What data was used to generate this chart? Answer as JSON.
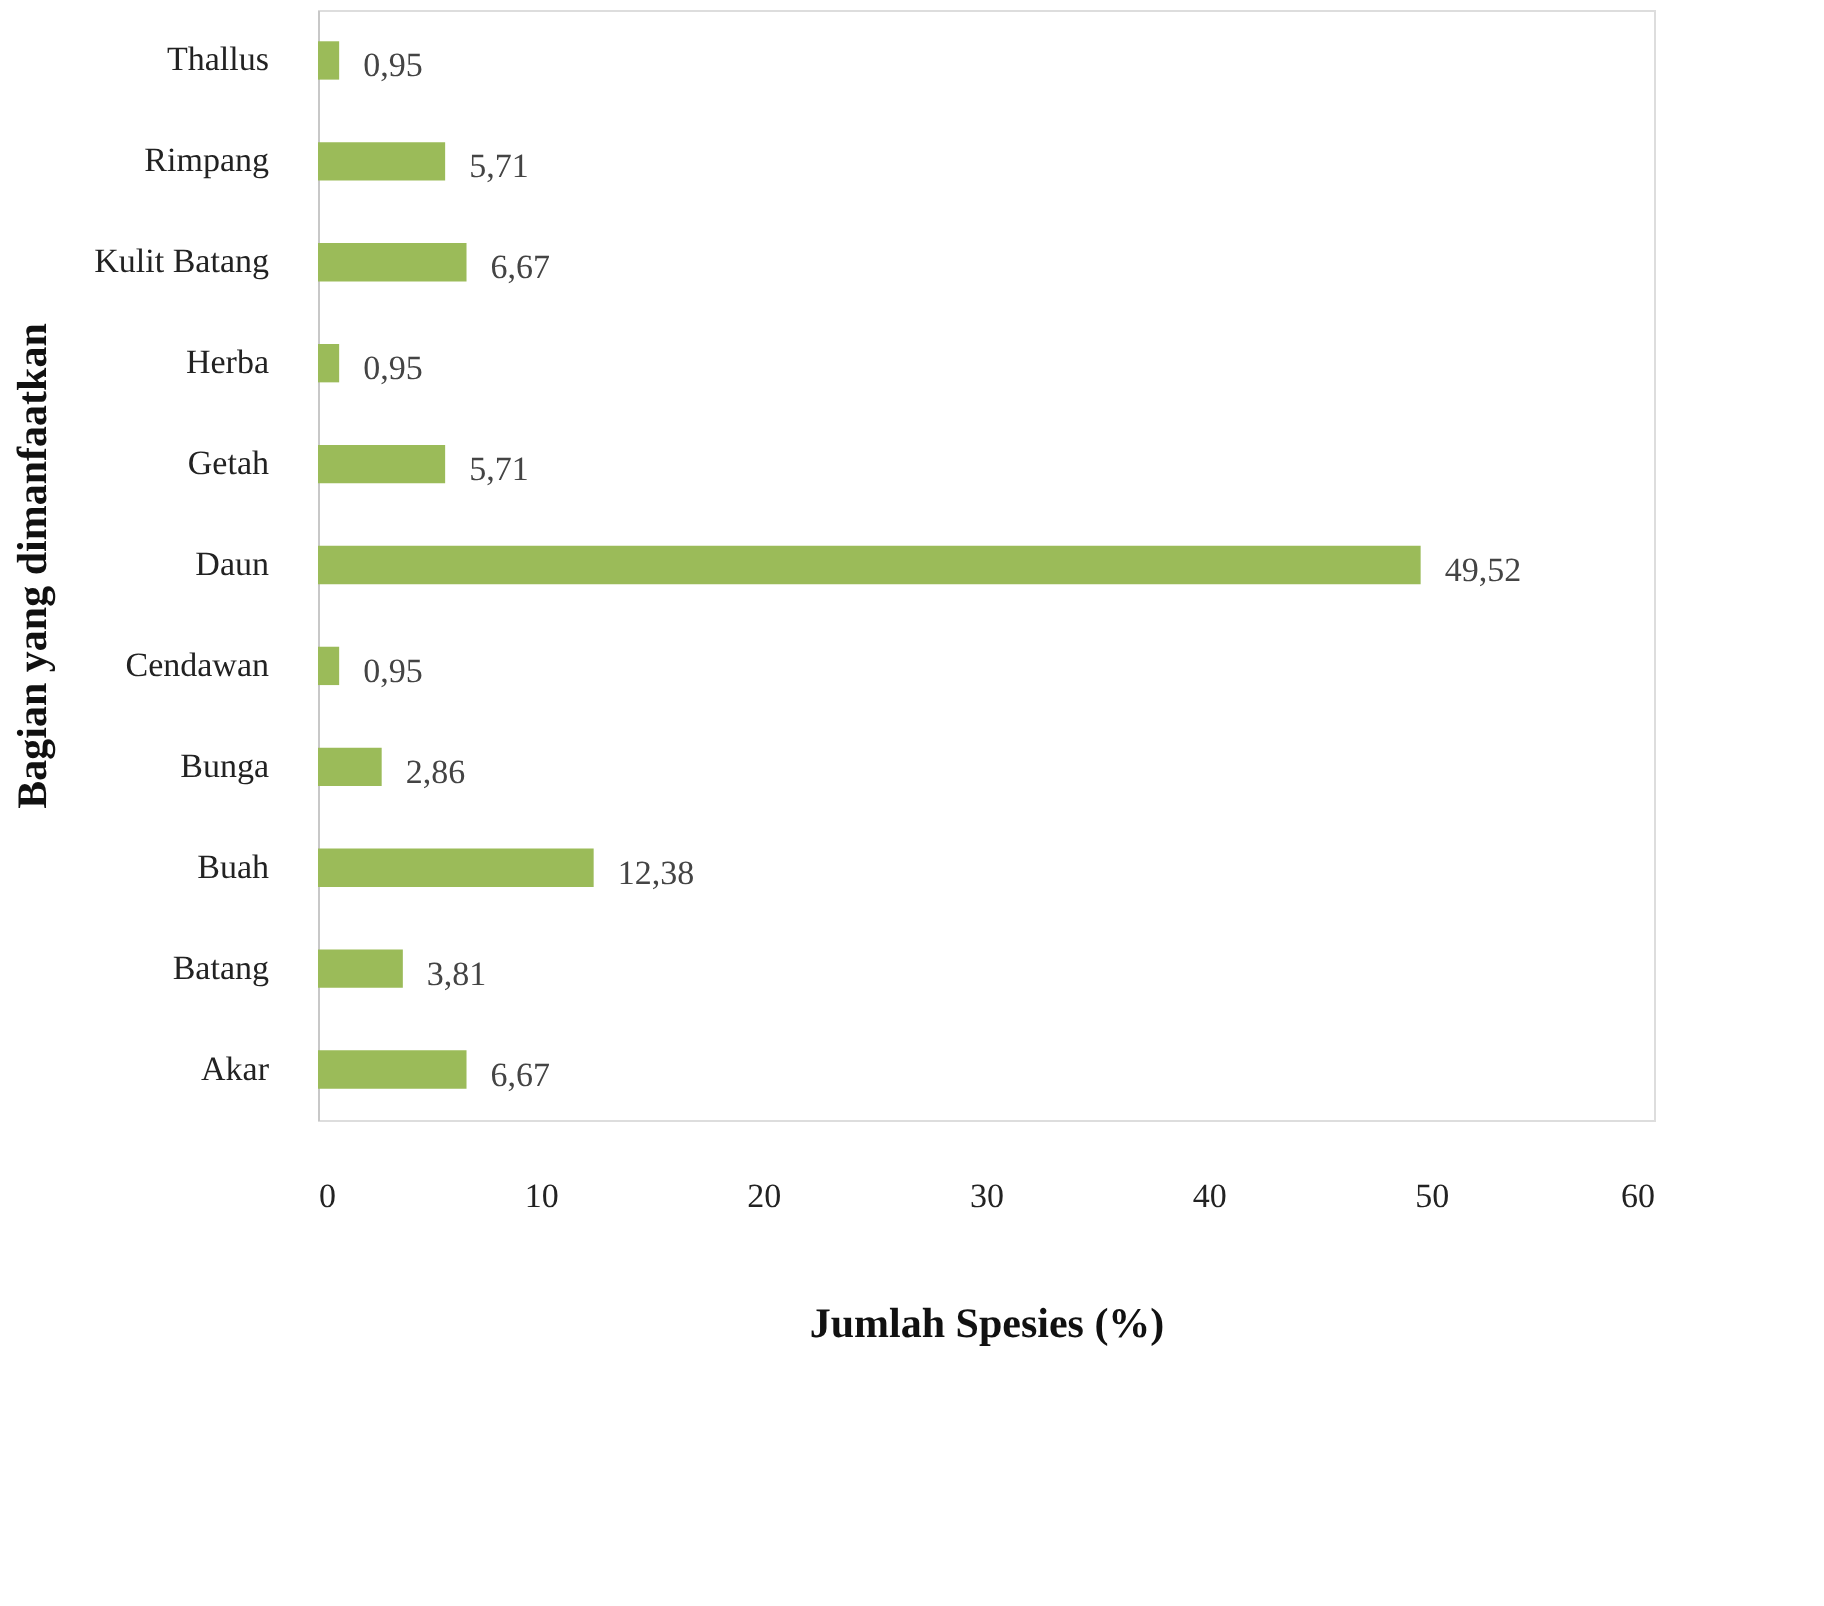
{
  "chart_data": {
    "type": "bar",
    "orientation": "horizontal",
    "xlabel": "Jumlah Spesies (%)",
    "ylabel": "Bagian yang dimanfaatkan",
    "categories": [
      "Thallus",
      "Rimpang",
      "Kulit Batang",
      "Herba",
      "Getah",
      "Daun",
      "Cendawan",
      "Bunga",
      "Buah",
      "Batang",
      "Akar"
    ],
    "values": [
      0.95,
      5.71,
      6.67,
      0.95,
      5.71,
      49.52,
      0.95,
      2.86,
      12.38,
      3.81,
      6.67
    ],
    "value_labels": [
      "0,95",
      "5,71",
      "6,67",
      "0,95",
      "5,71",
      "49,52",
      "0,95",
      "2,86",
      "12,38",
      "3,81",
      "6,67"
    ],
    "color": "#9bbb59",
    "xlim": [
      0,
      60
    ],
    "xticks": [
      0,
      10,
      20,
      30,
      40,
      50,
      60
    ],
    "grid": false
  }
}
